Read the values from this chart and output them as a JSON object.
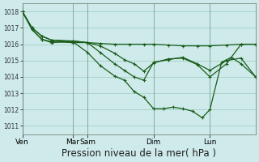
{
  "bg_color": "#ceeaea",
  "grid_color": "#a8d5c8",
  "line_color": "#1a5c1a",
  "xlabel": "Pression niveau de la mer( hPa )",
  "xlabel_fontsize": 8.5,
  "ylim": [
    1010.5,
    1018.5
  ],
  "yticks": [
    1011,
    1012,
    1013,
    1014,
    1015,
    1016,
    1017,
    1018
  ],
  "xtick_labels": [
    "Ven",
    "Mar",
    "Sam",
    "Dim",
    "Lun"
  ],
  "xtick_positions": [
    0.0,
    0.52,
    0.67,
    1.35,
    1.93
  ],
  "xlim": [
    0,
    2.4
  ],
  "series1_x": [
    0.0,
    0.1,
    0.2,
    0.3,
    0.52,
    0.67,
    0.8,
    0.95,
    1.1,
    1.25,
    1.35,
    1.5,
    1.65,
    1.8,
    1.93,
    2.1,
    2.25,
    2.4
  ],
  "series1_y": [
    1018.0,
    1016.9,
    1016.3,
    1016.15,
    1016.1,
    1016.1,
    1016.05,
    1016.0,
    1016.0,
    1016.0,
    1016.0,
    1015.95,
    1015.9,
    1015.9,
    1015.9,
    1015.95,
    1016.0,
    1016.0
  ],
  "series2_x": [
    0.0,
    0.1,
    0.2,
    0.3,
    0.52,
    0.67,
    0.8,
    0.95,
    1.05,
    1.15,
    1.25,
    1.35,
    1.45,
    1.55,
    1.65,
    1.75,
    1.85,
    1.93,
    2.05,
    2.15,
    2.25,
    2.4
  ],
  "series2_y": [
    1018.0,
    1017.0,
    1016.5,
    1016.25,
    1016.15,
    1015.5,
    1014.7,
    1014.05,
    1013.8,
    1013.1,
    1012.75,
    1012.05,
    1012.05,
    1012.15,
    1012.05,
    1011.9,
    1011.5,
    1012.0,
    1014.9,
    1015.2,
    1014.8,
    1014.0
  ],
  "series3_x": [
    0.0,
    0.1,
    0.2,
    0.3,
    0.52,
    0.67,
    0.8,
    0.95,
    1.05,
    1.15,
    1.25,
    1.35,
    1.5,
    1.65,
    1.8,
    1.93,
    2.1,
    2.25,
    2.4
  ],
  "series3_y": [
    1018.0,
    1017.0,
    1016.5,
    1016.25,
    1016.2,
    1016.1,
    1015.5,
    1014.8,
    1014.4,
    1014.0,
    1013.8,
    1014.9,
    1015.05,
    1015.2,
    1014.8,
    1014.4,
    1015.0,
    1015.15,
    1014.0
  ],
  "series4_x": [
    0.0,
    0.1,
    0.2,
    0.3,
    0.52,
    0.67,
    0.8,
    0.95,
    1.05,
    1.15,
    1.25,
    1.35,
    1.5,
    1.65,
    1.8,
    1.93,
    2.1,
    2.25,
    2.4
  ],
  "series4_y": [
    1018.0,
    1016.9,
    1016.3,
    1016.1,
    1016.2,
    1016.1,
    1015.9,
    1015.45,
    1015.05,
    1014.8,
    1014.35,
    1014.85,
    1015.1,
    1015.15,
    1014.75,
    1014.0,
    1014.8,
    1016.0,
    1016.0
  ]
}
